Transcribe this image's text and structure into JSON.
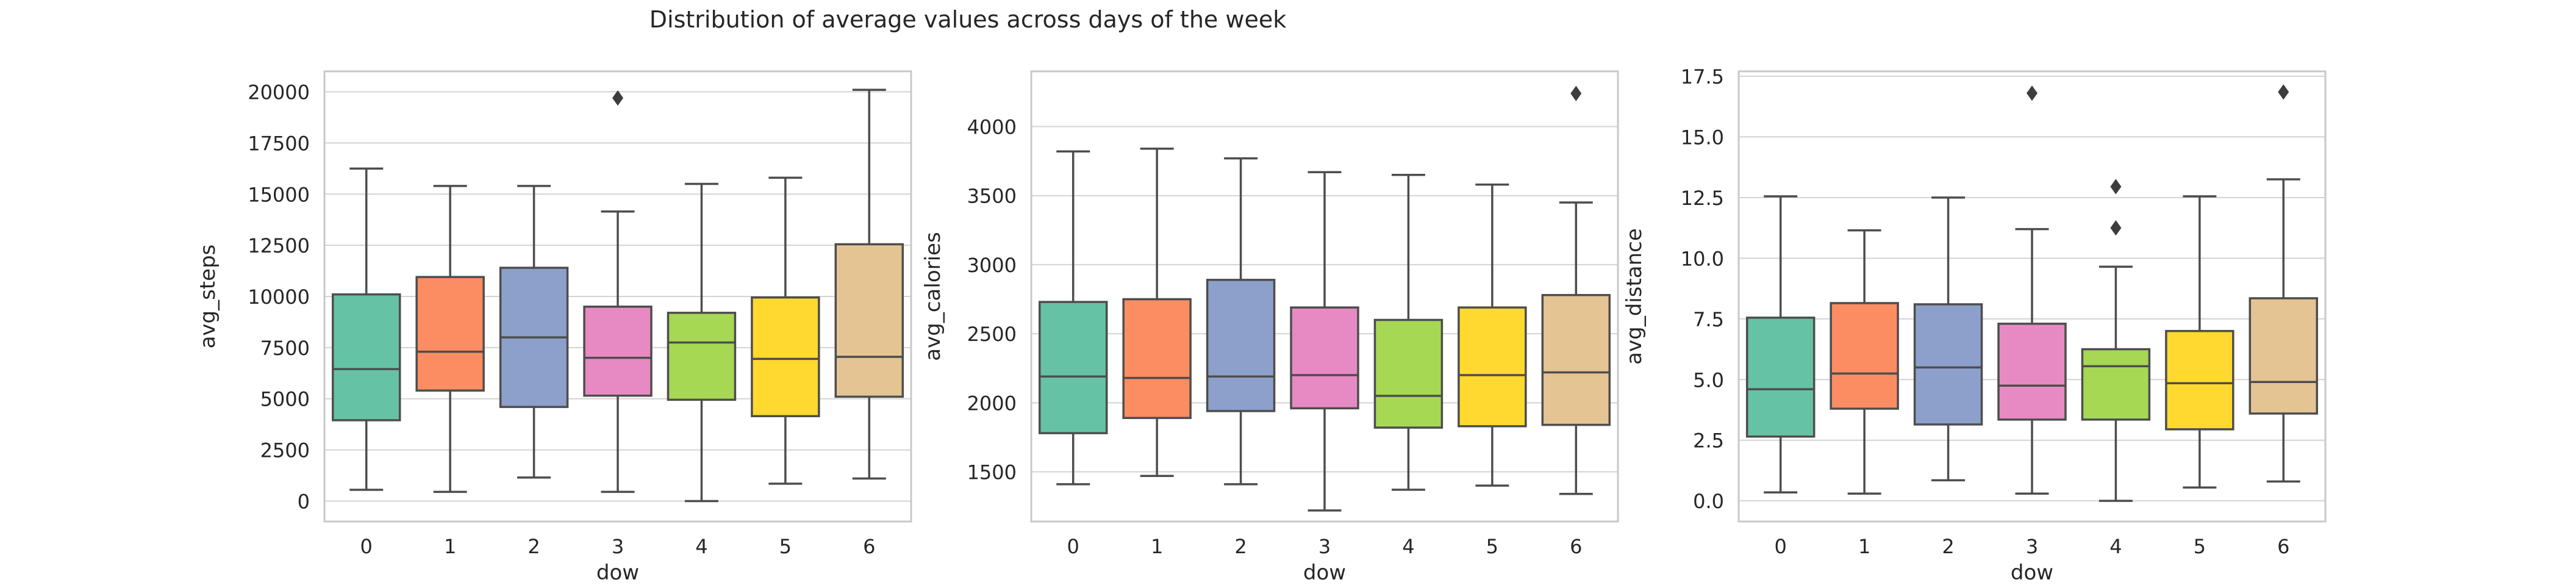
{
  "figure": {
    "title": "Distribution of average values across days of the week"
  },
  "colors": {
    "palette": [
      "#66c2a5",
      "#fc8d62",
      "#8da0cb",
      "#e78ac3",
      "#a6d854",
      "#ffd92f",
      "#e5c494"
    ],
    "grid": "#d3d3d3",
    "frame": "#c8c8c8",
    "box_edge": "#4d4d4d",
    "text": "#262626"
  },
  "chart_data": [
    {
      "type": "box",
      "xlabel": "dow",
      "ylabel": "avg_steps",
      "categories": [
        "0",
        "1",
        "2",
        "3",
        "4",
        "5",
        "6"
      ],
      "ylim": [
        -1000,
        21000
      ],
      "yticks": [
        0,
        2500,
        5000,
        7500,
        10000,
        12500,
        15000,
        17500,
        20000
      ],
      "grid": true,
      "boxes": [
        {
          "min": 550,
          "q1": 3950,
          "median": 6450,
          "q3": 10100,
          "max": 16250,
          "outliers": []
        },
        {
          "min": 450,
          "q1": 5400,
          "median": 7300,
          "q3": 10950,
          "max": 15400,
          "outliers": []
        },
        {
          "min": 1150,
          "q1": 4600,
          "median": 8000,
          "q3": 11400,
          "max": 15400,
          "outliers": []
        },
        {
          "min": 450,
          "q1": 5150,
          "median": 7000,
          "q3": 9500,
          "max": 14150,
          "outliers": [
            19700
          ]
        },
        {
          "min": 0,
          "q1": 4950,
          "median": 7750,
          "q3": 9200,
          "max": 15500,
          "outliers": []
        },
        {
          "min": 850,
          "q1": 4150,
          "median": 6950,
          "q3": 9950,
          "max": 15800,
          "outliers": []
        },
        {
          "min": 1100,
          "q1": 5100,
          "median": 7050,
          "q3": 12550,
          "max": 20100,
          "outliers": []
        }
      ]
    },
    {
      "type": "box",
      "xlabel": "dow",
      "ylabel": "avg_calories",
      "categories": [
        "0",
        "1",
        "2",
        "3",
        "4",
        "5",
        "6"
      ],
      "ylim": [
        1140,
        4400
      ],
      "yticks": [
        1500,
        2000,
        2500,
        3000,
        3500,
        4000
      ],
      "grid": true,
      "boxes": [
        {
          "min": 1410,
          "q1": 1780,
          "median": 2190,
          "q3": 2730,
          "max": 3820,
          "outliers": []
        },
        {
          "min": 1470,
          "q1": 1890,
          "median": 2180,
          "q3": 2750,
          "max": 3840,
          "outliers": []
        },
        {
          "min": 1410,
          "q1": 1940,
          "median": 2190,
          "q3": 2890,
          "max": 3770,
          "outliers": []
        },
        {
          "min": 1220,
          "q1": 1960,
          "median": 2200,
          "q3": 2690,
          "max": 3670,
          "outliers": []
        },
        {
          "min": 1370,
          "q1": 1820,
          "median": 2050,
          "q3": 2600,
          "max": 3650,
          "outliers": []
        },
        {
          "min": 1400,
          "q1": 1830,
          "median": 2200,
          "q3": 2690,
          "max": 3580,
          "outliers": []
        },
        {
          "min": 1340,
          "q1": 1840,
          "median": 2220,
          "q3": 2780,
          "max": 3450,
          "outliers": [
            4240
          ]
        }
      ]
    },
    {
      "type": "box",
      "xlabel": "dow",
      "ylabel": "avg_distance",
      "categories": [
        "0",
        "1",
        "2",
        "3",
        "4",
        "5",
        "6"
      ],
      "ylim": [
        -0.85,
        17.7
      ],
      "yticks": [
        0.0,
        2.5,
        5.0,
        7.5,
        10.0,
        12.5,
        15.0,
        17.5
      ],
      "yticklabels": [
        "0.0",
        "2.5",
        "5.0",
        "7.5",
        "10.0",
        "12.5",
        "15.0",
        "17.5"
      ],
      "grid": true,
      "boxes": [
        {
          "min": 0.35,
          "q1": 2.65,
          "median": 4.6,
          "q3": 7.55,
          "max": 12.55,
          "outliers": []
        },
        {
          "min": 0.3,
          "q1": 3.8,
          "median": 5.25,
          "q3": 8.15,
          "max": 11.15,
          "outliers": []
        },
        {
          "min": 0.85,
          "q1": 3.15,
          "median": 5.5,
          "q3": 8.1,
          "max": 12.5,
          "outliers": []
        },
        {
          "min": 0.3,
          "q1": 3.35,
          "median": 4.75,
          "q3": 7.3,
          "max": 11.2,
          "outliers": [
            16.8
          ]
        },
        {
          "min": 0.0,
          "q1": 3.35,
          "median": 5.55,
          "q3": 6.25,
          "max": 9.65,
          "outliers": [
            12.95,
            11.25
          ]
        },
        {
          "min": 0.55,
          "q1": 2.95,
          "median": 4.85,
          "q3": 7.0,
          "max": 12.55,
          "outliers": []
        },
        {
          "min": 0.8,
          "q1": 3.6,
          "median": 4.9,
          "q3": 8.35,
          "max": 13.25,
          "outliers": [
            16.85
          ]
        }
      ]
    }
  ]
}
